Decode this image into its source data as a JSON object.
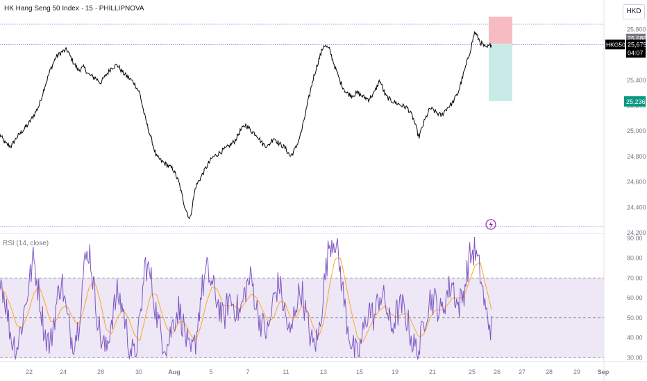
{
  "header": {
    "symbol_title": "HK Hang Seng 50 Index · 15 · PHILLIPNOVA",
    "currency": "HKD"
  },
  "price_labels": {
    "ticker": "HKG50",
    "stop": "25,686",
    "last": "25,679",
    "countdown": "04:07",
    "target": "25,236"
  },
  "rsi_panel": {
    "title": "RSI (14, close)"
  },
  "colors": {
    "price_line": "#000000",
    "rsi_line": "#7e57c2",
    "rsi_ma_line": "#ffa726",
    "rsi_band": "#ede7f6",
    "loss_zone": "#f7bcc2",
    "profit_zone": "#c8ebe8",
    "target_badge": "#089981",
    "last_badge": "#000000",
    "stop_badge": "#787b86",
    "ref_line": "#7e8bd6",
    "alert_icon": "#9c27b0"
  },
  "icons": [
    "lightning-alert-icon"
  ],
  "chart_data": [
    {
      "type": "line",
      "title": "HK Hang Seng 50 Index · 15 · PHILLIPNOVA",
      "series": [
        {
          "values": [
            24970,
            24900,
            24880,
            24950,
            25000,
            25050,
            25120,
            25200,
            25350,
            25480,
            25580,
            25620,
            25640,
            25550,
            25480,
            25500,
            25440,
            25420,
            25380,
            25440,
            25500,
            25520,
            25460,
            25420,
            25380,
            25300,
            25100,
            24950,
            24800,
            24760,
            24730,
            24700,
            24600,
            24420,
            24300,
            24560,
            24640,
            24720,
            24790,
            24820,
            24850,
            24880,
            24920,
            25000,
            25050,
            25000,
            24970,
            24900,
            24880,
            24950,
            24900,
            24870,
            24800,
            24870,
            25000,
            25200,
            25400,
            25550,
            25680,
            25640,
            25500,
            25380,
            25300,
            25280,
            25300,
            25270,
            25250,
            25300,
            25400,
            25280,
            25240,
            25220,
            25200,
            25180,
            25100,
            24950,
            25080,
            25180,
            25150,
            25120,
            25180,
            25220,
            25300,
            25450,
            25600,
            25780,
            25700,
            25650,
            25679
          ]
        }
      ],
      "y_ticks": [
        "25,800",
        "25,600",
        "25,400",
        "25,200",
        "25,000",
        "24,800",
        "24,600",
        "24,400",
        "24,200"
      ],
      "ylim": [
        24200,
        25900
      ],
      "x_ticks": [
        "22",
        "24",
        "28",
        "30",
        "Aug",
        "5",
        "7",
        "11",
        "13",
        "15",
        "19",
        "21",
        "25",
        "26",
        "27",
        "28",
        "29",
        "Sep"
      ],
      "position": {
        "stop": 25900,
        "entry": 25686,
        "target": 25236
      },
      "ref_lines": [
        25840,
        25679,
        24250
      ]
    },
    {
      "type": "line",
      "title": "RSI (14, close)",
      "series": [
        {
          "name": "RSI",
          "values": [
            72,
            58,
            40,
            35,
            48,
            64,
            80,
            62,
            42,
            36,
            55,
            70,
            50,
            38,
            45,
            75,
            85,
            60,
            40,
            33,
            50,
            62,
            55,
            38,
            30,
            45,
            78,
            70,
            52,
            40,
            36,
            48,
            55,
            44,
            30,
            38,
            62,
            74,
            66,
            58,
            48,
            60,
            56,
            52,
            65,
            70,
            54,
            46,
            42,
            60,
            68,
            52,
            40,
            58,
            64,
            48,
            36,
            40,
            66,
            88,
            90,
            72,
            50,
            36,
            30,
            42,
            55,
            50,
            62,
            58,
            44,
            52,
            56,
            48,
            36,
            33,
            50,
            60,
            58,
            52,
            62,
            68,
            55,
            62,
            80,
            84,
            72,
            52,
            45
          ]
        },
        {
          "name": "RSI MA",
          "values": [
            66,
            62,
            55,
            46,
            45,
            52,
            62,
            66,
            58,
            48,
            48,
            55,
            56,
            50,
            46,
            54,
            66,
            68,
            58,
            44,
            42,
            50,
            54,
            50,
            42,
            38,
            50,
            62,
            62,
            52,
            44,
            42,
            48,
            48,
            42,
            38,
            46,
            58,
            66,
            64,
            56,
            56,
            56,
            54,
            58,
            62,
            60,
            54,
            48,
            50,
            58,
            58,
            50,
            50,
            56,
            54,
            46,
            40,
            48,
            66,
            80,
            80,
            66,
            52,
            40,
            38,
            44,
            50,
            54,
            56,
            52,
            50,
            52,
            52,
            46,
            40,
            42,
            50,
            54,
            54,
            56,
            60,
            60,
            60,
            68,
            76,
            78,
            66,
            54
          ]
        }
      ],
      "y_ticks": [
        "90.00",
        "80.00",
        "70.00",
        "60.00",
        "50.00",
        "40.00",
        "30.00"
      ],
      "ylim": [
        28,
        92
      ],
      "band": [
        30,
        70
      ],
      "midline": 50
    }
  ]
}
